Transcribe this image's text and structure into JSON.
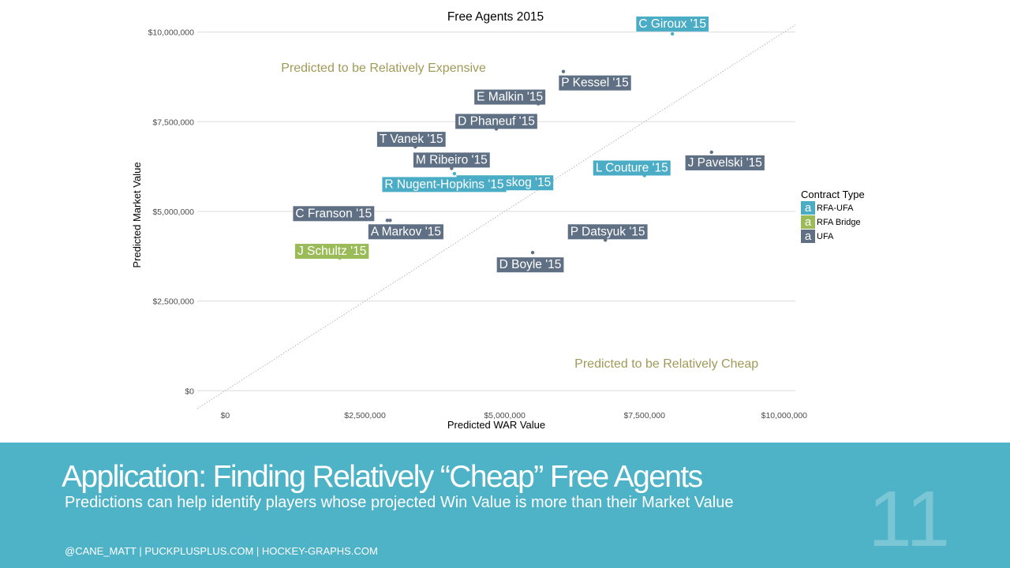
{
  "chart_data": {
    "type": "scatter",
    "title": "Free Agents 2015",
    "xlabel": "Predicted WAR Value",
    "ylabel": "Predicted Market Value",
    "xlim": [
      -500000,
      10200000
    ],
    "ylim": [
      -500000,
      10300000
    ],
    "x_ticks": [
      0,
      2500000,
      5000000,
      7500000,
      10000000
    ],
    "x_tick_labels": [
      "$0",
      "$2,500,000",
      "$5,000,000",
      "$7,500,000",
      "$10,000,000"
    ],
    "y_ticks": [
      0,
      2500000,
      5000000,
      7500000,
      10000000
    ],
    "y_tick_labels": [
      "$0",
      "$2,500,000",
      "$5,000,000",
      "$7,500,000",
      "$10,000,000"
    ],
    "grid": "horizontal",
    "reference_line": "y = x (dotted)",
    "legend": {
      "title": "Contract Type",
      "position": "right",
      "key_glyph": "a",
      "entries": [
        {
          "name": "RFA-UFA",
          "color": "#4bacc6"
        },
        {
          "name": "RFA Bridge",
          "color": "#9bbb59"
        },
        {
          "name": "UFA",
          "color": "#5f6f84"
        }
      ]
    },
    "annotations": [
      {
        "text": "Predicted to be Relatively Expensive",
        "x": 1000000,
        "y": 9000000,
        "color": "#a09a58"
      },
      {
        "text": "Predicted to be Relatively Cheap",
        "x": 6250000,
        "y": 750000,
        "color": "#a09a58"
      }
    ],
    "points": [
      {
        "label": "C Giroux '15",
        "x": 8000000,
        "y": 9950000,
        "type": "RFA-UFA"
      },
      {
        "label": "P Kessel '15",
        "x": 6050000,
        "y": 8900000,
        "type": "UFA"
      },
      {
        "label": "E Malkin '15",
        "x": 5600000,
        "y": 8000000,
        "type": "UFA"
      },
      {
        "label": "D Phaneuf '15",
        "x": 4850000,
        "y": 7300000,
        "type": "UFA"
      },
      {
        "label": "T Vanek '15",
        "x": 3400000,
        "y": 6800000,
        "type": "UFA"
      },
      {
        "label": "M Ribeiro '15",
        "x": 4050000,
        "y": 6200000,
        "type": "UFA"
      },
      {
        "label": "G Landeskog '15",
        "x": 4100000,
        "y": 6050000,
        "type": "RFA-UFA"
      },
      {
        "label": "L Couture '15",
        "x": 7500000,
        "y": 6000000,
        "type": "RFA-UFA"
      },
      {
        "label": "J Pavelski '15",
        "x": 8700000,
        "y": 6650000,
        "type": "UFA"
      },
      {
        "label": "R Nugent-Hopkins '15",
        "x": 3650000,
        "y": 5650000,
        "type": "RFA-UFA"
      },
      {
        "label": "C Franson '15",
        "x": 2900000,
        "y": 4750000,
        "type": "UFA"
      },
      {
        "label": "A Markov '15",
        "x": 2950000,
        "y": 4750000,
        "type": "UFA"
      },
      {
        "label": "P Datsyuk '15",
        "x": 6800000,
        "y": 4200000,
        "type": "UFA"
      },
      {
        "label": "D Boyle '15",
        "x": 5500000,
        "y": 3850000,
        "type": "UFA"
      },
      {
        "label": "J Schultz '15",
        "x": 2050000,
        "y": 3700000,
        "type": "RFA Bridge"
      }
    ]
  },
  "footer": {
    "title": "Application: Finding Relatively “Cheap” Free Agents",
    "subtitle": "Predictions can help identify players whose projected Win Value is more than their Market Value",
    "credits": "@CANE_MATT | PUCKPLUSPLUS.COM | HOCKEY-GRAPHS.COM",
    "slide_number": "11",
    "background": "#4fb3c8"
  }
}
